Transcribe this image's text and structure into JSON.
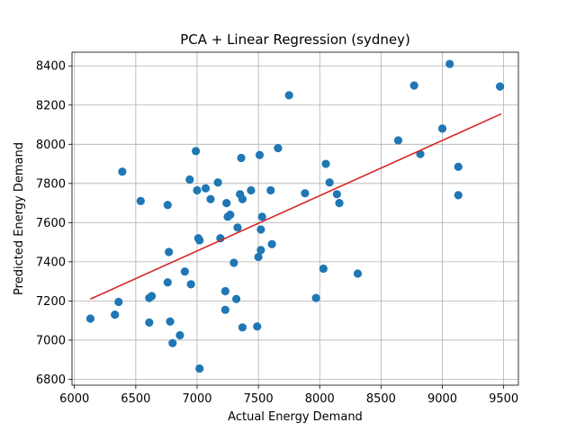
{
  "chart_data": {
    "type": "scatter",
    "title": "PCA + Linear Regression (sydney)",
    "xlabel": "Actual Energy Demand",
    "ylabel": "Predicted Energy Demand",
    "xlim": [
      5980,
      9620
    ],
    "ylim": [
      6770,
      8470
    ],
    "xticks": [
      6000,
      6500,
      7000,
      7500,
      8000,
      8500,
      9000,
      9500
    ],
    "yticks": [
      6800,
      7000,
      7200,
      7400,
      7600,
      7800,
      8000,
      8200,
      8400
    ],
    "grid": true,
    "colors": {
      "points": "#1f77b4",
      "fit_line": "#d62728",
      "grid": "#b0b0b0"
    },
    "fit_line": {
      "x": [
        6130,
        9480
      ],
      "y": [
        7210,
        8155
      ]
    },
    "points": [
      [
        6130,
        7110
      ],
      [
        6330,
        7130
      ],
      [
        6360,
        7195
      ],
      [
        6390,
        7860
      ],
      [
        6540,
        7710
      ],
      [
        6610,
        7090
      ],
      [
        6610,
        7215
      ],
      [
        6630,
        7225
      ],
      [
        6760,
        7690
      ],
      [
        6770,
        7450
      ],
      [
        6760,
        7295
      ],
      [
        6780,
        7095
      ],
      [
        6800,
        6985
      ],
      [
        6860,
        7025
      ],
      [
        6900,
        7350
      ],
      [
        6940,
        7820
      ],
      [
        6950,
        7285
      ],
      [
        6990,
        7965
      ],
      [
        7000,
        7765
      ],
      [
        7010,
        7520
      ],
      [
        7020,
        7510
      ],
      [
        7020,
        6855
      ],
      [
        7070,
        7775
      ],
      [
        7110,
        7720
      ],
      [
        7170,
        7805
      ],
      [
        7190,
        7520
      ],
      [
        7230,
        7250
      ],
      [
        7230,
        7155
      ],
      [
        7240,
        7700
      ],
      [
        7250,
        7630
      ],
      [
        7270,
        7640
      ],
      [
        7300,
        7395
      ],
      [
        7320,
        7210
      ],
      [
        7330,
        7575
      ],
      [
        7350,
        7745
      ],
      [
        7360,
        7930
      ],
      [
        7370,
        7720
      ],
      [
        7370,
        7065
      ],
      [
        7440,
        7765
      ],
      [
        7490,
        7070
      ],
      [
        7500,
        7425
      ],
      [
        7510,
        7945
      ],
      [
        7520,
        7460
      ],
      [
        7520,
        7565
      ],
      [
        7530,
        7630
      ],
      [
        7600,
        7765
      ],
      [
        7610,
        7490
      ],
      [
        7660,
        7980
      ],
      [
        7750,
        8250
      ],
      [
        7880,
        7750
      ],
      [
        7970,
        7215
      ],
      [
        8030,
        7365
      ],
      [
        8050,
        7900
      ],
      [
        8080,
        7805
      ],
      [
        8140,
        7745
      ],
      [
        8160,
        7700
      ],
      [
        8310,
        7340
      ],
      [
        8640,
        8020
      ],
      [
        8770,
        8300
      ],
      [
        8820,
        7950
      ],
      [
        9000,
        8080
      ],
      [
        9060,
        8410
      ],
      [
        9130,
        7885
      ],
      [
        9130,
        7740
      ],
      [
        9470,
        8295
      ]
    ]
  }
}
